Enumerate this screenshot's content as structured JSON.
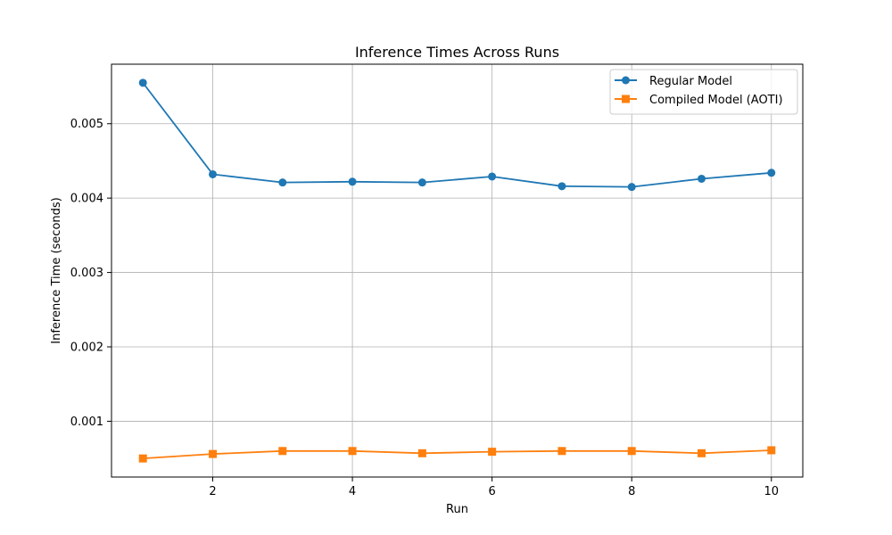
{
  "chart_data": {
    "type": "line",
    "title": "Inference Times Across Runs",
    "xlabel": "Run",
    "ylabel": "Inference Time (seconds)",
    "x": [
      1,
      2,
      3,
      4,
      5,
      6,
      7,
      8,
      9,
      10
    ],
    "xlim": [
      0.55,
      10.45
    ],
    "ylim": [
      0.00025,
      0.0058
    ],
    "xticks": [
      2,
      4,
      6,
      8,
      10
    ],
    "xtick_labels": [
      "2",
      "4",
      "6",
      "8",
      "10"
    ],
    "yticks": [
      0.001,
      0.002,
      0.003,
      0.004,
      0.005
    ],
    "ytick_labels": [
      "0.001",
      "0.002",
      "0.003",
      "0.004",
      "0.005"
    ],
    "grid": true,
    "legend_position": "top-right",
    "series": [
      {
        "name": "Regular Model",
        "marker": "circle",
        "color": "#1f77b4",
        "values": [
          0.00555,
          0.00432,
          0.00421,
          0.00422,
          0.00421,
          0.00429,
          0.00416,
          0.00415,
          0.00426,
          0.00434
        ]
      },
      {
        "name": "Compiled Model (AOTI)",
        "marker": "square",
        "color": "#ff7f0e",
        "values": [
          0.0005,
          0.00056,
          0.0006,
          0.0006,
          0.00057,
          0.00059,
          0.0006,
          0.0006,
          0.00057,
          0.00061
        ]
      }
    ]
  }
}
